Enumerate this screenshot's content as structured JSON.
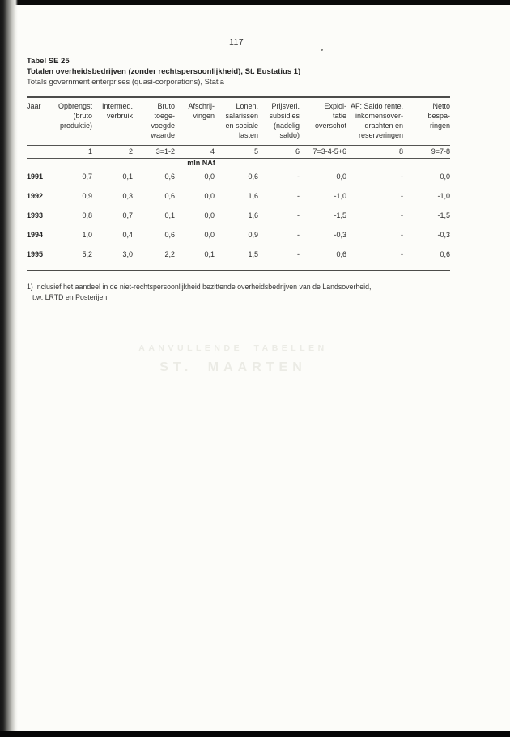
{
  "page": {
    "page_number": "117",
    "table_label": "Tabel SE 25",
    "title_nl": "Totalen overheidsbedrijven (zonder rechtspersoonlijkheid), St. Eustatius 1)",
    "title_en": "Totals government enterprises (quasi-corporations), Statia",
    "unit_label": "mln NAf",
    "footnote_line1": "1) Inclusief het aandeel in de niet-rechtspersoonlijkheid bezittende overheidsbedrijven van de Landsoverheid,",
    "footnote_line2": "t.w. LRTD en Posterijen.",
    "watermark_line1": "AANVULLENDE TABELLEN",
    "watermark_line2": "ST. MAARTEN"
  },
  "table": {
    "columns": [
      {
        "label_lines": [
          "Jaar"
        ],
        "code": ""
      },
      {
        "label_lines": [
          "Opbrengst",
          "(bruto",
          "produktie)"
        ],
        "code": "1"
      },
      {
        "label_lines": [
          "Intermed.",
          "verbruik"
        ],
        "code": "2"
      },
      {
        "label_lines": [
          "Bruto",
          "toege-",
          "voegde",
          "waarde"
        ],
        "code": "3=1-2"
      },
      {
        "label_lines": [
          "Afschrij-",
          "vingen"
        ],
        "code": "4"
      },
      {
        "label_lines": [
          "Lonen,",
          "salarissen",
          "en sociale",
          "lasten"
        ],
        "code": "5"
      },
      {
        "label_lines": [
          "Prijsverl.",
          "subsidies",
          "(nadelig",
          "saldo)"
        ],
        "code": "6"
      },
      {
        "label_lines": [
          "Exploi-",
          "tatie",
          "overschot"
        ],
        "code": "7=3-4-5+6"
      },
      {
        "label_lines": [
          "AF: Saldo rente,",
          "inkomensover-",
          "drachten en",
          "reserveringen"
        ],
        "code": "8"
      },
      {
        "label_lines": [
          "Netto",
          "bespa-",
          "ringen"
        ],
        "code": "9=7-8"
      }
    ],
    "rows": [
      {
        "year": "1991",
        "values": [
          "0,7",
          "0,1",
          "0,6",
          "0,0",
          "0,6",
          "-",
          "0,0",
          "-",
          "0,0"
        ]
      },
      {
        "year": "1992",
        "values": [
          "0,9",
          "0,3",
          "0,6",
          "0,0",
          "1,6",
          "-",
          "-1,0",
          "-",
          "-1,0"
        ]
      },
      {
        "year": "1993",
        "values": [
          "0,8",
          "0,7",
          "0,1",
          "0,0",
          "1,6",
          "-",
          "-1,5",
          "-",
          "-1,5"
        ]
      },
      {
        "year": "1994",
        "values": [
          "1,0",
          "0,4",
          "0,6",
          "0,0",
          "0,9",
          "-",
          "-0,3",
          "-",
          "-0,3"
        ]
      },
      {
        "year": "1995",
        "values": [
          "5,2",
          "3,0",
          "2,2",
          "0,1",
          "1,5",
          "-",
          "0,6",
          "-",
          "0,6"
        ]
      }
    ]
  }
}
